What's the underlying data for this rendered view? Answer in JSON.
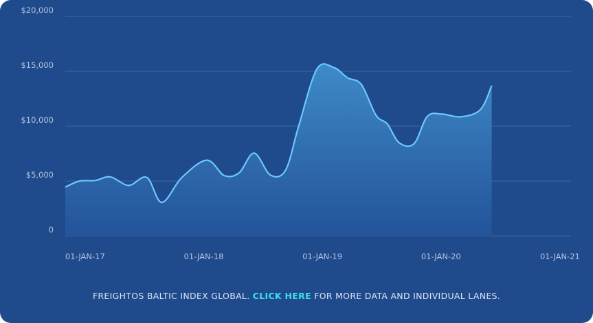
{
  "chart_data": {
    "type": "area",
    "title": "",
    "xlabel": "",
    "ylabel": "",
    "ylim": [
      0,
      20000
    ],
    "y_ticks": [
      "0",
      "$5,000",
      "$10,000",
      "$15,000",
      "$20,000"
    ],
    "y_tick_values": [
      0,
      5000,
      10000,
      15000,
      20000
    ],
    "x_ticks": [
      "01-JAN-17",
      "01-JAN-18",
      "01-JAN-19",
      "01-JAN-20",
      "01-JAN-21"
    ],
    "x_tick_dates": [
      "2017-01-01",
      "2018-01-01",
      "2019-01-01",
      "2020-01-01",
      "2021-01-01"
    ],
    "x_range": [
      "2016-11-01",
      "2021-02-04"
    ],
    "grid": true,
    "legend": "none",
    "colors": {
      "line": "#6cc8ff",
      "fill_top": "#3f8ecb",
      "fill_bottom": "#24549a",
      "grid": "#3e66a5",
      "background": "#1f4a8c"
    },
    "series": [
      {
        "points": [
          [
            "2016-11-01",
            4450
          ],
          [
            "2016-12-15",
            5000
          ],
          [
            "2017-02-01",
            5050
          ],
          [
            "2017-03-20",
            5380
          ],
          [
            "2017-05-15",
            4600
          ],
          [
            "2017-07-10",
            5330
          ],
          [
            "2017-08-25",
            3050
          ],
          [
            "2017-10-25",
            5300
          ],
          [
            "2018-01-10",
            6900
          ],
          [
            "2018-03-05",
            5500
          ],
          [
            "2018-04-20",
            5750
          ],
          [
            "2018-06-05",
            7550
          ],
          [
            "2018-07-25",
            5550
          ],
          [
            "2018-09-10",
            6000
          ],
          [
            "2018-10-20",
            10000
          ],
          [
            "2018-12-15",
            15200
          ],
          [
            "2019-02-05",
            15350
          ],
          [
            "2019-03-20",
            14400
          ],
          [
            "2019-05-01",
            13800
          ],
          [
            "2019-06-15",
            11000
          ],
          [
            "2019-07-20",
            10200
          ],
          [
            "2019-08-25",
            8500
          ],
          [
            "2019-10-10",
            8400
          ],
          [
            "2019-11-20",
            10900
          ],
          [
            "2020-01-05",
            11100
          ],
          [
            "2020-03-01",
            10850
          ],
          [
            "2020-05-01",
            11500
          ],
          [
            "2020-06-05",
            13700
          ]
        ]
      }
    ]
  },
  "footer": {
    "prefix": "FREIGHTOS BALTIC INDEX GLOBAL.",
    "link": "CLICK HERE",
    "suffix": "FOR MORE DATA AND INDIVIDUAL LANES."
  }
}
